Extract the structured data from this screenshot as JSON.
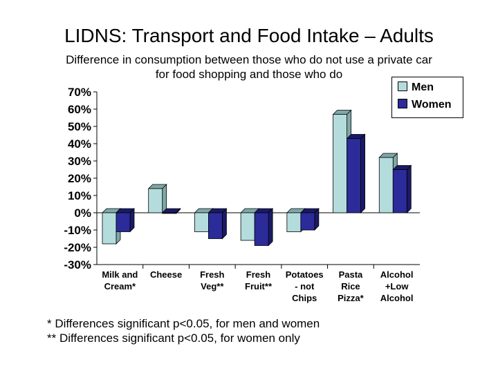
{
  "chart_data": {
    "type": "bar",
    "title": "LIDNS: Transport and Food Intake – Adults",
    "subtitle_lines": [
      "Difference in consumption between those who do not use a private car",
      "for food shopping and those who do"
    ],
    "categories": [
      [
        "Milk and",
        "Cream*"
      ],
      [
        "Cheese"
      ],
      [
        "Fresh",
        "Veg**"
      ],
      [
        "Fresh",
        "Fruit**"
      ],
      [
        "Potatoes",
        "- not",
        "Chips"
      ],
      [
        "Pasta",
        "Rice",
        "Pizza*"
      ],
      [
        "Alcohol",
        "+Low",
        "Alcohol"
      ]
    ],
    "series": [
      {
        "name": "Men",
        "color": "#b4dcdc",
        "values": [
          -18,
          14,
          -11,
          -16,
          -11,
          57,
          32
        ]
      },
      {
        "name": "Women",
        "color": "#2b2b9a",
        "values": [
          -11,
          0,
          -15,
          -19,
          -10,
          43,
          25
        ]
      }
    ],
    "ylim": [
      -30,
      70
    ],
    "yticks": [
      "70%",
      "60%",
      "50%",
      "40%",
      "30%",
      "20%",
      "10%",
      "0%",
      "-10%",
      "-20%",
      "-30%"
    ],
    "legend_position": "top-right",
    "grid": false
  },
  "notes": [
    "* Differences significant p<0.05, for men and women",
    "** Differences significant p<0.05, for women only"
  ]
}
